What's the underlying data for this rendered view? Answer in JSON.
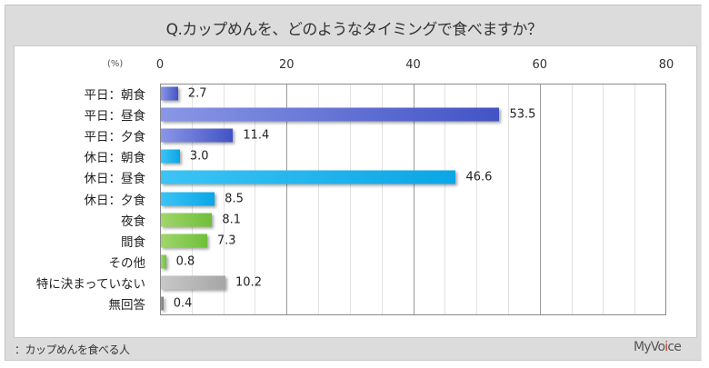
{
  "title": "Q.カップめんを、どのようなタイミングで食べますか？",
  "unit_label": "(%)",
  "footer_note": "：カップめんを食べる人",
  "logo": {
    "prefix": "MyVo",
    "accent": "i",
    "suffix": "ce"
  },
  "colors": {
    "weekday": [
      "#8a96e6",
      "#4353c4"
    ],
    "holiday": [
      "#3cc4f5",
      "#0aa6e6"
    ],
    "other": [
      "#9fd66a",
      "#6fbf3a"
    ],
    "none": [
      "#c8c8c8",
      "#a6a6a6"
    ],
    "noanswer": [
      "#9a9a9a",
      "#7a7a7a"
    ]
  },
  "chart_data": {
    "type": "bar",
    "orientation": "horizontal",
    "title": "Q.カップめんを、どのようなタイミングで食べますか？",
    "xlabel": "(%)",
    "ylabel": "",
    "xlim": [
      0,
      80
    ],
    "xticks": [
      0,
      20,
      40,
      60,
      80
    ],
    "grid": true,
    "legend": null,
    "categories": [
      "平日：朝食",
      "平日：昼食",
      "平日：夕食",
      "休日：朝食",
      "休日：昼食",
      "休日：夕食",
      "夜食",
      "間食",
      "その他",
      "特に決まっていない",
      "無回答"
    ],
    "values": [
      2.7,
      53.5,
      11.4,
      3.0,
      46.6,
      8.5,
      8.1,
      7.3,
      0.8,
      10.2,
      0.4
    ],
    "value_labels": [
      "2.7",
      "53.5",
      "11.4",
      "3.0",
      "46.6",
      "8.5",
      "8.1",
      "7.3",
      "0.8",
      "10.2",
      "0.4"
    ],
    "color_groups": [
      "weekday",
      "weekday",
      "weekday",
      "holiday",
      "holiday",
      "holiday",
      "other",
      "other",
      "other",
      "none",
      "noanswer"
    ],
    "annotation": "：カップめんを食べる人"
  }
}
